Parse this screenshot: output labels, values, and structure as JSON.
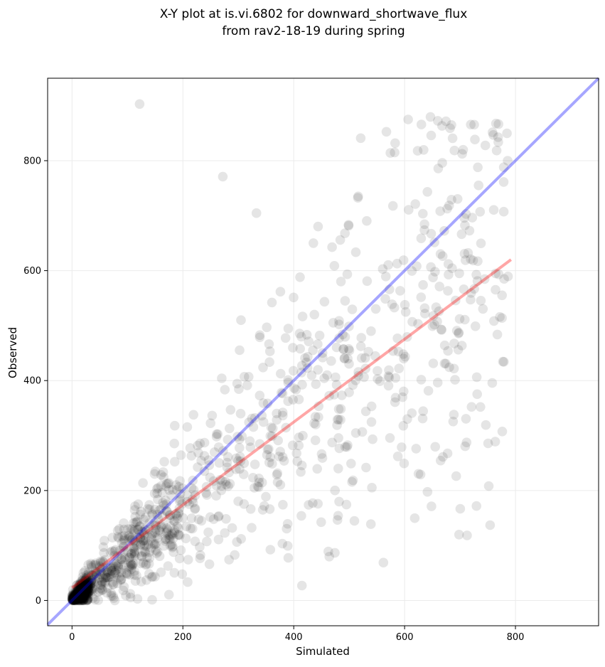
{
  "chart_data": {
    "type": "scatter",
    "title_line1": "X-Y plot at is.vi.6802 for downward_shortwave_flux",
    "title_line2": "from rav2-18-19 during spring",
    "xlabel": "Simulated",
    "ylabel": "Observed",
    "xlim": [
      -44,
      950
    ],
    "ylim": [
      -46,
      950
    ],
    "xticks": [
      0,
      200,
      400,
      600,
      800
    ],
    "yticks": [
      0,
      200,
      400,
      600,
      800
    ],
    "grid": true,
    "point_color": "#000000",
    "point_opacity": 0.1,
    "identity_line": {
      "x": [
        -44,
        950
      ],
      "y": [
        -44,
        950
      ],
      "color": "#0000ff"
    },
    "fit_line": {
      "x": [
        0,
        792
      ],
      "y": [
        23,
        620
      ],
      "color": "#ff0000"
    },
    "notable_points": [
      [
        122,
        903
      ],
      [
        272,
        771
      ],
      [
        582,
        815
      ],
      [
        668,
        796
      ],
      [
        786,
        800
      ]
    ],
    "cloud": {
      "count": 1300,
      "seed": 7
    }
  }
}
